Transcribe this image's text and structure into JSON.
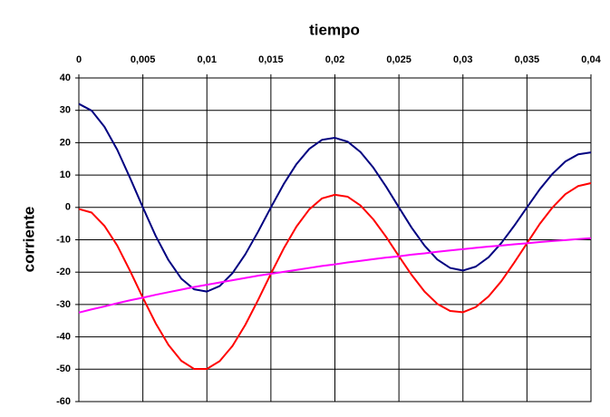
{
  "chart_data": {
    "type": "line",
    "x_label": "tiempo",
    "y_label": "corriente",
    "x": [
      0,
      0.001,
      0.002,
      0.003,
      0.004,
      0.005,
      0.006,
      0.007,
      0.008,
      0.009,
      0.01,
      0.011,
      0.012,
      0.013,
      0.014,
      0.015,
      0.016,
      0.017,
      0.018,
      0.019,
      0.02,
      0.021,
      0.022,
      0.023,
      0.024,
      0.025,
      0.026,
      0.027,
      0.028,
      0.029,
      0.03,
      0.031,
      0.032,
      0.033,
      0.034,
      0.035,
      0.036,
      0.037,
      0.038,
      0.039,
      0.04
    ],
    "series": [
      {
        "color": "#000080",
        "values": [
          32,
          29.9,
          24.9,
          17.8,
          9.1,
          0,
          -8.8,
          -16.3,
          -22.0,
          -25.3,
          -26,
          -24.3,
          -20.3,
          -14.5,
          -7.5,
          0,
          7.2,
          13.4,
          18.1,
          20.9,
          21.5,
          20.3,
          17.1,
          12.3,
          6.4,
          0,
          -6.3,
          -11.8,
          -16.1,
          -18.7,
          -19.5,
          -18.3,
          -15.4,
          -11.0,
          -5.7,
          0,
          5.6,
          10.4,
          14.2,
          16.4,
          17
        ]
      },
      {
        "color": "#ff0000",
        "values": [
          -0.5,
          -1.6,
          -5.7,
          -11.8,
          -19.6,
          -27.9,
          -35.8,
          -42.5,
          -47.4,
          -49.9,
          -49.9,
          -47.5,
          -42.8,
          -36.3,
          -28.6,
          -20.5,
          -12.7,
          -5.9,
          -0.6,
          2.8,
          3.9,
          3.3,
          0.6,
          -3.7,
          -9.1,
          -15.1,
          -20.9,
          -26.0,
          -29.8,
          -32.0,
          -32.4,
          -30.8,
          -27.5,
          -22.8,
          -17.1,
          -11.1,
          -5.1,
          0,
          4.1,
          6.6,
          7.5
        ]
      },
      {
        "color": "#ff00ff",
        "values": [
          -32.5,
          -31.5,
          -30.6,
          -29.6,
          -28.7,
          -27.9,
          -27.0,
          -26.2,
          -25.4,
          -24.6,
          -23.9,
          -23.2,
          -22.5,
          -21.8,
          -21.1,
          -20.5,
          -19.9,
          -19.3,
          -18.7,
          -18.1,
          -17.6,
          -17.0,
          -16.5,
          -16.0,
          -15.5,
          -15.1,
          -14.6,
          -14.2,
          -13.7,
          -13.3,
          -12.9,
          -12.5,
          -12.1,
          -11.8,
          -11.4,
          -11.1,
          -10.7,
          -10.4,
          -10.1,
          -9.8,
          -9.5
        ]
      }
    ],
    "xlim": [
      0,
      0.04
    ],
    "xticks": [
      0,
      {
        "value": 0.005,
        "label": "0,005"
      },
      {
        "value": 0.01,
        "label": "0,01"
      },
      {
        "value": 0.015,
        "label": "0,015"
      },
      {
        "value": 0.02,
        "label": "0,02"
      },
      {
        "value": 0.025,
        "label": "0,025"
      },
      {
        "value": 0.03,
        "label": "0,03"
      },
      {
        "value": 0.035,
        "label": "0,035"
      },
      {
        "value": 0.04,
        "label": "0,04"
      }
    ],
    "ylim": [
      -60,
      40
    ],
    "yticks": [
      -60,
      -50,
      -40,
      -30,
      -20,
      -10,
      0,
      10,
      20,
      30,
      40
    ],
    "grid": true,
    "x_axis_position": "top"
  }
}
